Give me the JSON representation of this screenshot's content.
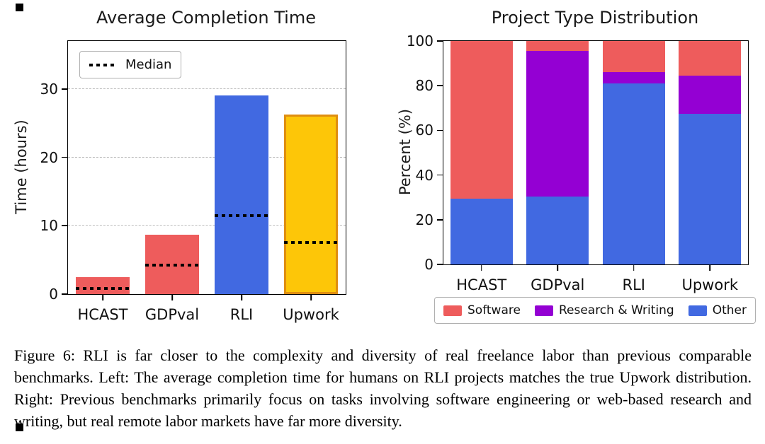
{
  "figure": {
    "caption": "Figure 6: RLI is far closer to the complexity and diversity of real freelance labor than previous comparable benchmarks. Left: The average completion time for humans on RLI projects matches the true Upwork distribution. Right: Previous benchmarks primarily focus on tasks involving software engineering or web-based research and writing, but real remote labor markets have far more diversity."
  },
  "chart_data": [
    {
      "type": "bar",
      "title": "Average Completion Time",
      "ylabel": "Time (hours)",
      "xlabel": "",
      "categories": [
        "HCAST",
        "GDPval",
        "RLI",
        "Upwork"
      ],
      "values": [
        2.5,
        8.7,
        29,
        26.3
      ],
      "medians": [
        0.8,
        4.2,
        11.5,
        7.5
      ],
      "bar_colors": [
        "#ee5c5c",
        "#ee5c5c",
        "#4169e1",
        "#fdc608"
      ],
      "bar_edge_colors": [
        null,
        null,
        null,
        "#df8e10"
      ],
      "ylim": [
        0,
        37
      ],
      "yticks": [
        0,
        10,
        20,
        30
      ],
      "grid": "dashed-horizontal",
      "legend": {
        "label": "Median",
        "style": "dotted-black-line",
        "position": "upper-left"
      }
    },
    {
      "type": "bar",
      "stacked": true,
      "title": "Project Type Distribution",
      "ylabel": "Percent (%)",
      "xlabel": "",
      "categories": [
        "HCAST",
        "GDPval",
        "RLI",
        "Upwork"
      ],
      "series": [
        {
          "name": "Other",
          "color": "#4169e1",
          "values": [
            29.5,
            30.5,
            81,
            67.5
          ]
        },
        {
          "name": "Research & Writing",
          "color": "#9400d3",
          "values": [
            0,
            65,
            5,
            17
          ]
        },
        {
          "name": "Software",
          "color": "#ee5c5c",
          "values": [
            70.5,
            4.5,
            14,
            15.5
          ]
        }
      ],
      "ylim": [
        0,
        100
      ],
      "yticks": [
        0,
        20,
        40,
        60,
        80,
        100
      ],
      "grid": "off",
      "legend_items": [
        {
          "label": "Software",
          "color": "#ee5c5c"
        },
        {
          "label": "Research & Writing",
          "color": "#9400d3"
        },
        {
          "label": "Other",
          "color": "#4169e1"
        }
      ],
      "legend_position": "below"
    }
  ]
}
